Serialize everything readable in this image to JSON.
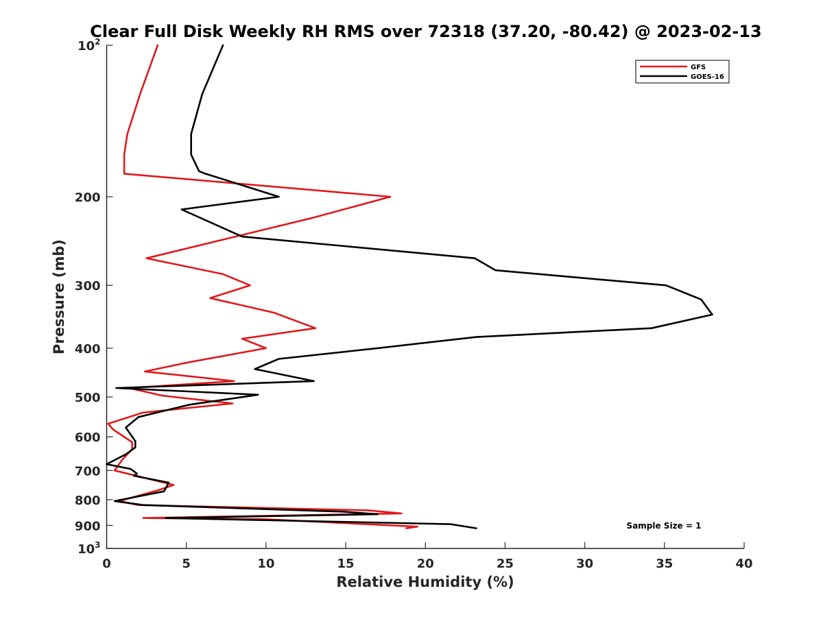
{
  "chart_data": {
    "type": "line",
    "title": "Clear Full Disk Weekly RH RMS over 72318 (37.20, -80.42) @ 2023-02-13",
    "xlabel": "Relative Humidity (%)",
    "ylabel": "Pressure (mb)",
    "xlim": [
      0,
      40
    ],
    "ylim": [
      100,
      1000
    ],
    "y_scale": "log",
    "y_reversed": true,
    "x_ticks": [
      0,
      5,
      10,
      15,
      20,
      25,
      30,
      35,
      40
    ],
    "x_tick_labels": [
      "0",
      "5",
      "10",
      "15",
      "20",
      "25",
      "30",
      "35",
      "40"
    ],
    "y_ticks": [
      {
        "value": 100,
        "base": "10",
        "sup": "2"
      },
      {
        "value": 200,
        "base": "200",
        "sup": ""
      },
      {
        "value": 300,
        "base": "300",
        "sup": ""
      },
      {
        "value": 400,
        "base": "400",
        "sup": ""
      },
      {
        "value": 500,
        "base": "500",
        "sup": ""
      },
      {
        "value": 600,
        "base": "600",
        "sup": ""
      },
      {
        "value": 700,
        "base": "700",
        "sup": ""
      },
      {
        "value": 800,
        "base": "800",
        "sup": ""
      },
      {
        "value": 900,
        "base": "900",
        "sup": ""
      },
      {
        "value": 1000,
        "base": "10",
        "sup": "3"
      }
    ],
    "grid": false,
    "legend_position": "top-right",
    "annotation": "Sample Size = 1",
    "series": [
      {
        "name": "GFS",
        "color": "#e0191b",
        "points": [
          [
            3.2,
            100
          ],
          [
            2.1,
            125
          ],
          [
            1.3,
            150
          ],
          [
            1.1,
            165
          ],
          [
            1.1,
            180
          ],
          [
            17.8,
            200
          ],
          [
            13.0,
            220
          ],
          [
            2.5,
            265
          ],
          [
            7.3,
            285
          ],
          [
            9.0,
            300
          ],
          [
            6.5,
            318
          ],
          [
            10.5,
            340
          ],
          [
            13.1,
            365
          ],
          [
            8.5,
            383
          ],
          [
            10.0,
            400
          ],
          [
            5.1,
            427
          ],
          [
            2.4,
            445
          ],
          [
            8.0,
            465
          ],
          [
            1.4,
            480
          ],
          [
            3.5,
            497
          ],
          [
            7.9,
            515
          ],
          [
            2.3,
            537
          ],
          [
            0.1,
            565
          ],
          [
            0.4,
            580
          ],
          [
            1.6,
            615
          ],
          [
            1.6,
            635
          ],
          [
            1.0,
            665
          ],
          [
            0.5,
            700
          ],
          [
            4.2,
            748
          ],
          [
            3.3,
            765
          ],
          [
            0.8,
            805
          ],
          [
            2.0,
            820
          ],
          [
            16.4,
            840
          ],
          [
            18.5,
            852
          ],
          [
            2.3,
            870
          ],
          [
            10.0,
            875
          ],
          [
            19.5,
            905
          ],
          [
            18.8,
            912
          ]
        ]
      },
      {
        "name": "GOES-16",
        "color": "#000000",
        "points": [
          [
            7.3,
            100
          ],
          [
            6.0,
            125
          ],
          [
            5.3,
            150
          ],
          [
            5.3,
            165
          ],
          [
            5.8,
            178
          ],
          [
            6.2,
            180
          ],
          [
            10.8,
            200
          ],
          [
            4.7,
            212
          ],
          [
            8.5,
            240
          ],
          [
            23.1,
            265
          ],
          [
            24.4,
            280
          ],
          [
            35.1,
            300
          ],
          [
            37.3,
            320
          ],
          [
            38.0,
            343
          ],
          [
            34.2,
            365
          ],
          [
            23.2,
            380
          ],
          [
            17.0,
            400
          ],
          [
            10.8,
            420
          ],
          [
            9.3,
            440
          ],
          [
            13.0,
            465
          ],
          [
            0.6,
            480
          ],
          [
            9.5,
            495
          ],
          [
            5.2,
            518
          ],
          [
            2.0,
            548
          ],
          [
            1.2,
            575
          ],
          [
            1.8,
            612
          ],
          [
            1.8,
            630
          ],
          [
            1.2,
            650
          ],
          [
            0.0,
            680
          ],
          [
            1.5,
            695
          ],
          [
            1.9,
            710
          ],
          [
            1.7,
            717
          ],
          [
            3.9,
            740
          ],
          [
            3.6,
            770
          ],
          [
            0.5,
            805
          ],
          [
            2.3,
            820
          ],
          [
            14.8,
            845
          ],
          [
            17.0,
            855
          ],
          [
            3.7,
            870
          ],
          [
            21.6,
            895
          ],
          [
            23.2,
            912
          ]
        ]
      }
    ]
  }
}
